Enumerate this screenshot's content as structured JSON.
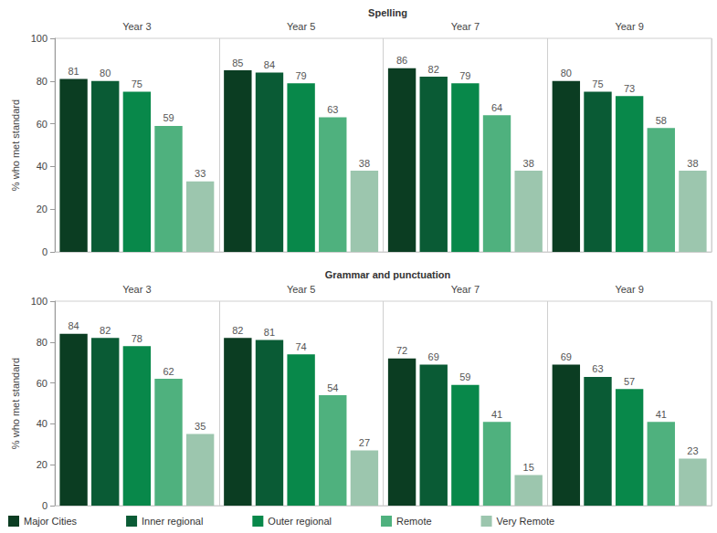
{
  "chart_data": [
    {
      "type": "bar",
      "title": "Spelling",
      "categories": [
        "Year 3",
        "Year 5",
        "Year 7",
        "Year 9"
      ],
      "ylabel": "% who met standard",
      "ylim": [
        0,
        100
      ],
      "yticks": [
        0,
        20,
        40,
        60,
        80,
        100
      ],
      "grid": false,
      "data_labels": true,
      "series": [
        {
          "name": "Major Cities",
          "color": "#0b3d22",
          "values": [
            81,
            85,
            86,
            80
          ]
        },
        {
          "name": "Inner regional",
          "color": "#0a5b35",
          "values": [
            80,
            84,
            82,
            75
          ]
        },
        {
          "name": "Outer regional",
          "color": "#08884a",
          "values": [
            75,
            79,
            79,
            73
          ]
        },
        {
          "name": "Remote",
          "color": "#4fb17e",
          "values": [
            59,
            63,
            64,
            58
          ]
        },
        {
          "name": "Very Remote",
          "color": "#9cc6ae",
          "values": [
            33,
            38,
            38,
            38
          ]
        }
      ]
    },
    {
      "type": "bar",
      "title": "Grammar and punctuation",
      "categories": [
        "Year 3",
        "Year 5",
        "Year 7",
        "Year 9"
      ],
      "ylabel": "% who met standard",
      "ylim": [
        0,
        100
      ],
      "yticks": [
        0,
        20,
        40,
        60,
        80,
        100
      ],
      "grid": false,
      "data_labels": true,
      "legend": "bottom",
      "series": [
        {
          "name": "Major Cities",
          "color": "#0b3d22",
          "values": [
            84,
            82,
            72,
            69
          ]
        },
        {
          "name": "Inner regional",
          "color": "#0a5b35",
          "values": [
            82,
            81,
            69,
            63
          ]
        },
        {
          "name": "Outer regional",
          "color": "#08884a",
          "values": [
            78,
            74,
            59,
            57
          ]
        },
        {
          "name": "Remote",
          "color": "#4fb17e",
          "values": [
            62,
            54,
            41,
            41
          ]
        },
        {
          "name": "Very Remote",
          "color": "#9cc6ae",
          "values": [
            35,
            27,
            15,
            23
          ]
        }
      ]
    }
  ]
}
